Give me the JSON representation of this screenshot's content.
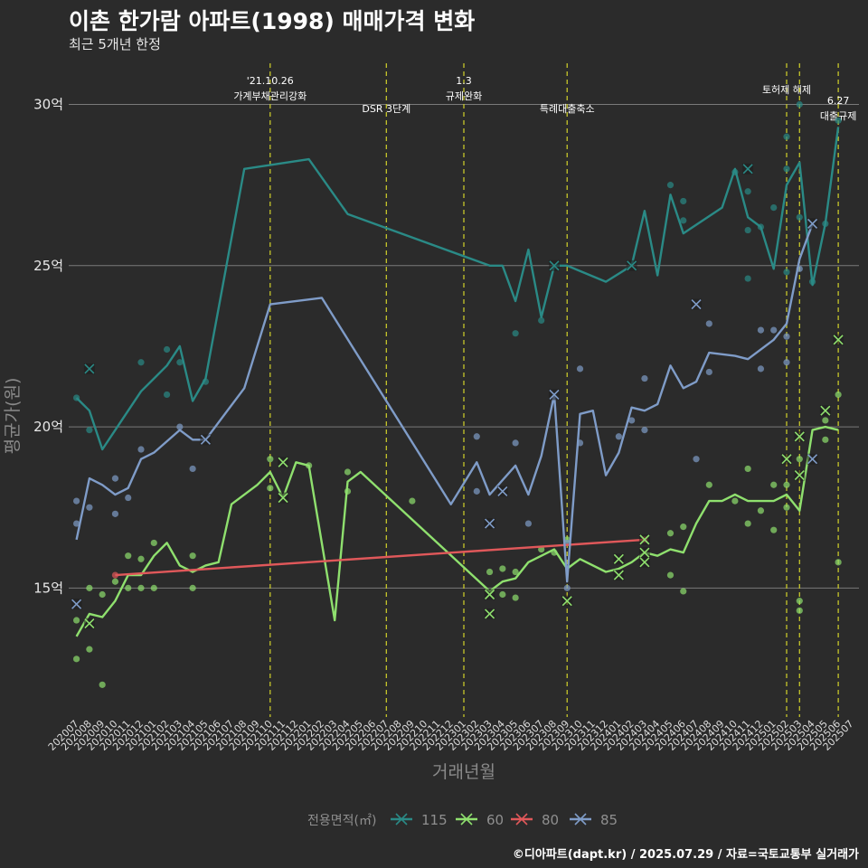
{
  "header": {
    "title": "이촌 한가람 아파트(1998) 매매가격 변화",
    "subtitle": "최근 5개년 한정"
  },
  "footer": {
    "caption": "©디아파트(dapt.kr) / 2025.07.29 / 자료=국토교통부 실거래가"
  },
  "colors": {
    "115": "#2a8a86",
    "60": "#8fe06e",
    "80": "#e0585a",
    "85": "#7f9cc8",
    "event_line": "#c6c62a",
    "grid": "#7a7a7a",
    "background": "#2b2b2b"
  },
  "chart_data": {
    "type": "line",
    "xlabel": "거래년월",
    "ylabel": "평균가(원)",
    "ylim": [
      11,
      31.5
    ],
    "grid": true,
    "legend_position": "bottom",
    "legend_title": "전용면적(㎡)",
    "x": [
      "202007",
      "202008",
      "202009",
      "202010",
      "202011",
      "202012",
      "202101",
      "202102",
      "202103",
      "202104",
      "202105",
      "202106",
      "202107",
      "202108",
      "202109",
      "202110",
      "202111",
      "202112",
      "202201",
      "202202",
      "202203",
      "202204",
      "202205",
      "202206",
      "202207",
      "202208",
      "202209",
      "202210",
      "202211",
      "202212",
      "202301",
      "202302",
      "202303",
      "202304",
      "202305",
      "202306",
      "202307",
      "202308",
      "202309",
      "202310",
      "202311",
      "202312",
      "202401",
      "202402",
      "202403",
      "202404",
      "202405",
      "202406",
      "202407",
      "202408",
      "202409",
      "202410",
      "202411",
      "202412",
      "202501",
      "202502",
      "202503",
      "202504",
      "202505",
      "202506",
      "202507"
    ],
    "y_ticks": [
      {
        "value": 15,
        "label": "15억"
      },
      {
        "value": 20,
        "label": "20억"
      },
      {
        "value": 25,
        "label": "25억"
      },
      {
        "value": 30,
        "label": "30억"
      }
    ],
    "events": [
      {
        "x": "202110",
        "label_lines": [
          "'21.10.26",
          "가계부채관리강화"
        ],
        "row": 0
      },
      {
        "x": "202207",
        "label_lines": [
          "DSR 3단계"
        ],
        "row": 2
      },
      {
        "x": "202301",
        "label_lines": [
          "1.3",
          "규제완화"
        ],
        "row": 0
      },
      {
        "x": "202309",
        "label_lines": [
          "특례대출축소"
        ],
        "row": 2
      },
      {
        "x": "202502",
        "label_lines": [
          "토허제 해제"
        ],
        "row": 1
      },
      {
        "x": "202503",
        "label_lines": [],
        "row": 1
      },
      {
        "x": "202506",
        "label_lines": [
          "6.27",
          "대출규제"
        ],
        "row": 1.5
      }
    ],
    "series": [
      {
        "name": "115",
        "color": "#2a8a86",
        "points": [
          [
            "202007",
            20.9
          ],
          [
            "202008",
            20.5
          ],
          [
            "202009",
            19.3
          ],
          [
            "202012",
            21.1
          ],
          [
            "202101",
            21.5
          ],
          [
            "202102",
            21.9
          ],
          [
            "202103",
            22.5
          ],
          [
            "202104",
            20.8
          ],
          [
            "202105",
            21.5
          ],
          [
            "202108",
            28.0
          ],
          [
            "202201",
            28.3
          ],
          [
            "202204",
            26.6
          ],
          [
            "202303",
            25.0
          ],
          [
            "202304",
            25.0
          ],
          [
            "202305",
            23.9
          ],
          [
            "202306",
            25.5
          ],
          [
            "202307",
            23.4
          ],
          [
            "202308",
            25.0
          ],
          [
            "202309",
            25.0
          ],
          [
            "202312",
            24.5
          ],
          [
            "202402",
            25.0
          ],
          [
            "202403",
            26.7
          ],
          [
            "202404",
            24.7
          ],
          [
            "202405",
            27.2
          ],
          [
            "202406",
            26.0
          ],
          [
            "202409",
            26.8
          ],
          [
            "202410",
            28.0
          ],
          [
            "202411",
            26.5
          ],
          [
            "202412",
            26.2
          ],
          [
            "202501",
            24.9
          ],
          [
            "202502",
            27.5
          ],
          [
            "202503",
            28.2
          ],
          [
            "202504",
            24.4
          ],
          [
            "202505",
            26.3
          ],
          [
            "202506",
            29.3
          ]
        ],
        "crosses": [
          [
            "202008",
            21.8
          ],
          [
            "202308",
            25.0
          ],
          [
            "202402",
            25.0
          ],
          [
            "202411",
            28.0
          ]
        ],
        "scatter": [
          [
            "202007",
            20.9
          ],
          [
            "202008",
            19.9
          ],
          [
            "202012",
            22.0
          ],
          [
            "202102",
            22.4
          ],
          [
            "202102",
            21.0
          ],
          [
            "202103",
            22.0
          ],
          [
            "202105",
            21.4
          ],
          [
            "202305",
            22.9
          ],
          [
            "202307",
            23.3
          ],
          [
            "202406",
            26.4
          ],
          [
            "202406",
            27.0
          ],
          [
            "202405",
            27.5
          ],
          [
            "202410",
            27.9
          ],
          [
            "202411",
            26.1
          ],
          [
            "202411",
            24.6
          ],
          [
            "202411",
            27.3
          ],
          [
            "202412",
            26.2
          ],
          [
            "202501",
            26.8
          ],
          [
            "202502",
            28.0
          ],
          [
            "202502",
            24.8
          ],
          [
            "202502",
            29.0
          ],
          [
            "202503",
            30.0
          ],
          [
            "202503",
            26.5
          ],
          [
            "202504",
            24.5
          ],
          [
            "202505",
            26.3
          ],
          [
            "202506",
            29.5
          ]
        ]
      },
      {
        "name": "60",
        "color": "#8fe06e",
        "points": [
          [
            "202007",
            13.5
          ],
          [
            "202008",
            14.2
          ],
          [
            "202009",
            14.1
          ],
          [
            "202010",
            14.6
          ],
          [
            "202011",
            15.4
          ],
          [
            "202012",
            15.4
          ],
          [
            "202101",
            16.0
          ],
          [
            "202102",
            16.4
          ],
          [
            "202103",
            15.7
          ],
          [
            "202104",
            15.5
          ],
          [
            "202105",
            15.7
          ],
          [
            "202106",
            15.8
          ],
          [
            "202107",
            17.6
          ],
          [
            "202109",
            18.2
          ],
          [
            "202110",
            18.6
          ],
          [
            "202111",
            17.8
          ],
          [
            "202112",
            18.9
          ],
          [
            "202201",
            18.8
          ],
          [
            "202203",
            14.0
          ],
          [
            "202204",
            18.3
          ],
          [
            "202205",
            18.6
          ],
          [
            "202303",
            14.9
          ],
          [
            "202304",
            15.2
          ],
          [
            "202305",
            15.3
          ],
          [
            "202306",
            15.8
          ],
          [
            "202307",
            16.0
          ],
          [
            "202308",
            16.2
          ],
          [
            "202309",
            15.6
          ],
          [
            "202310",
            15.9
          ],
          [
            "202312",
            15.5
          ],
          [
            "202401",
            15.6
          ],
          [
            "202402",
            15.8
          ],
          [
            "202403",
            16.1
          ],
          [
            "202404",
            16.0
          ],
          [
            "202405",
            16.2
          ],
          [
            "202406",
            16.1
          ],
          [
            "202407",
            17.0
          ],
          [
            "202408",
            17.7
          ],
          [
            "202409",
            17.7
          ],
          [
            "202410",
            17.9
          ],
          [
            "202411",
            17.7
          ],
          [
            "202501",
            17.7
          ],
          [
            "202502",
            17.9
          ],
          [
            "202503",
            17.4
          ],
          [
            "202504",
            19.9
          ],
          [
            "202505",
            20.0
          ],
          [
            "202506",
            19.9
          ]
        ],
        "crosses": [
          [
            "202008",
            13.9
          ],
          [
            "202111",
            18.9
          ],
          [
            "202111",
            17.8
          ],
          [
            "202303",
            14.2
          ],
          [
            "202303",
            14.8
          ],
          [
            "202309",
            14.6
          ],
          [
            "202401",
            15.4
          ],
          [
            "202401",
            15.9
          ],
          [
            "202403",
            15.8
          ],
          [
            "202403",
            16.1
          ],
          [
            "202403",
            16.5
          ],
          [
            "202502",
            19.0
          ],
          [
            "202503",
            19.7
          ],
          [
            "202503",
            18.5
          ],
          [
            "202505",
            20.5
          ],
          [
            "202506",
            22.7
          ]
        ],
        "scatter": [
          [
            "202007",
            12.8
          ],
          [
            "202007",
            14.0
          ],
          [
            "202008",
            13.1
          ],
          [
            "202008",
            15.0
          ],
          [
            "202009",
            12.0
          ],
          [
            "202009",
            14.8
          ],
          [
            "202010",
            15.2
          ],
          [
            "202011",
            16.0
          ],
          [
            "202011",
            15.0
          ],
          [
            "202012",
            15.9
          ],
          [
            "202012",
            15.0
          ],
          [
            "202101",
            16.4
          ],
          [
            "202101",
            15.0
          ],
          [
            "202104",
            16.0
          ],
          [
            "202104",
            15.0
          ],
          [
            "202110",
            18.1
          ],
          [
            "202110",
            19.0
          ],
          [
            "202201",
            18.8
          ],
          [
            "202204",
            18.0
          ],
          [
            "202204",
            18.6
          ],
          [
            "202209",
            17.7
          ],
          [
            "202303",
            15.5
          ],
          [
            "202304",
            15.6
          ],
          [
            "202304",
            14.8
          ],
          [
            "202305",
            14.7
          ],
          [
            "202305",
            15.5
          ],
          [
            "202307",
            16.2
          ],
          [
            "202308",
            16.1
          ],
          [
            "202309",
            16.5
          ],
          [
            "202405",
            15.4
          ],
          [
            "202405",
            16.7
          ],
          [
            "202406",
            14.9
          ],
          [
            "202406",
            16.9
          ],
          [
            "202408",
            18.2
          ],
          [
            "202410",
            17.7
          ],
          [
            "202411",
            18.7
          ],
          [
            "202411",
            17.0
          ],
          [
            "202412",
            17.4
          ],
          [
            "202501",
            18.2
          ],
          [
            "202501",
            16.8
          ],
          [
            "202502",
            17.5
          ],
          [
            "202502",
            18.2
          ],
          [
            "202503",
            14.6
          ],
          [
            "202503",
            14.3
          ],
          [
            "202503",
            19.0
          ],
          [
            "202505",
            20.2
          ],
          [
            "202505",
            19.6
          ],
          [
            "202506",
            21.0
          ],
          [
            "202506",
            15.8
          ]
        ]
      },
      {
        "name": "80",
        "color": "#e0585a",
        "points": [
          [
            "202010",
            15.4
          ],
          [
            "202403",
            16.5
          ]
        ],
        "crosses": [],
        "scatter": [
          [
            "202010",
            15.4
          ],
          [
            "202403",
            16.5
          ]
        ]
      },
      {
        "name": "85",
        "color": "#7f9cc8",
        "points": [
          [
            "202007",
            16.5
          ],
          [
            "202008",
            18.4
          ],
          [
            "202009",
            18.2
          ],
          [
            "202010",
            17.9
          ],
          [
            "202011",
            18.1
          ],
          [
            "202012",
            19.0
          ],
          [
            "202101",
            19.2
          ],
          [
            "202103",
            19.9
          ],
          [
            "202104",
            19.6
          ],
          [
            "202105",
            19.6
          ],
          [
            "202108",
            21.2
          ],
          [
            "202110",
            23.8
          ],
          [
            "202202",
            24.0
          ],
          [
            "202212",
            17.6
          ],
          [
            "202302",
            18.9
          ],
          [
            "202303",
            17.9
          ],
          [
            "202305",
            18.8
          ],
          [
            "202306",
            17.9
          ],
          [
            "202307",
            19.1
          ],
          [
            "202308",
            21.0
          ],
          [
            "202309",
            15.2
          ],
          [
            "202310",
            20.4
          ],
          [
            "202311",
            20.5
          ],
          [
            "202312",
            18.5
          ],
          [
            "202401",
            19.2
          ],
          [
            "202402",
            20.6
          ],
          [
            "202403",
            20.5
          ],
          [
            "202404",
            20.7
          ],
          [
            "202405",
            21.9
          ],
          [
            "202406",
            21.2
          ],
          [
            "202407",
            21.4
          ],
          [
            "202408",
            22.3
          ],
          [
            "202410",
            22.2
          ],
          [
            "202411",
            22.1
          ],
          [
            "202501",
            22.7
          ],
          [
            "202502",
            23.2
          ],
          [
            "202503",
            25.2
          ],
          [
            "202504",
            26.3
          ]
        ],
        "crosses": [
          [
            "202007",
            14.5
          ],
          [
            "202105",
            19.6
          ],
          [
            "202303",
            17.0
          ],
          [
            "202304",
            18.0
          ],
          [
            "202308",
            21.0
          ],
          [
            "202407",
            23.8
          ],
          [
            "202504",
            26.3
          ],
          [
            "202504",
            19.0
          ]
        ],
        "scatter": [
          [
            "202007",
            17.7
          ],
          [
            "202007",
            17.0
          ],
          [
            "202008",
            17.5
          ],
          [
            "202010",
            17.3
          ],
          [
            "202010",
            18.4
          ],
          [
            "202011",
            17.8
          ],
          [
            "202012",
            19.3
          ],
          [
            "202103",
            20.0
          ],
          [
            "202104",
            18.7
          ],
          [
            "202302",
            19.7
          ],
          [
            "202302",
            18.0
          ],
          [
            "202305",
            19.5
          ],
          [
            "202306",
            17.0
          ],
          [
            "202309",
            15.0
          ],
          [
            "202309",
            16.4
          ],
          [
            "202310",
            21.8
          ],
          [
            "202310",
            19.5
          ],
          [
            "202401",
            19.7
          ],
          [
            "202402",
            20.2
          ],
          [
            "202403",
            21.5
          ],
          [
            "202403",
            19.9
          ],
          [
            "202407",
            19.0
          ],
          [
            "202408",
            21.7
          ],
          [
            "202408",
            23.2
          ],
          [
            "202412",
            21.8
          ],
          [
            "202412",
            23.0
          ],
          [
            "202501",
            23.0
          ],
          [
            "202502",
            22.0
          ],
          [
            "202502",
            22.8
          ],
          [
            "202503",
            24.9
          ]
        ]
      }
    ]
  }
}
